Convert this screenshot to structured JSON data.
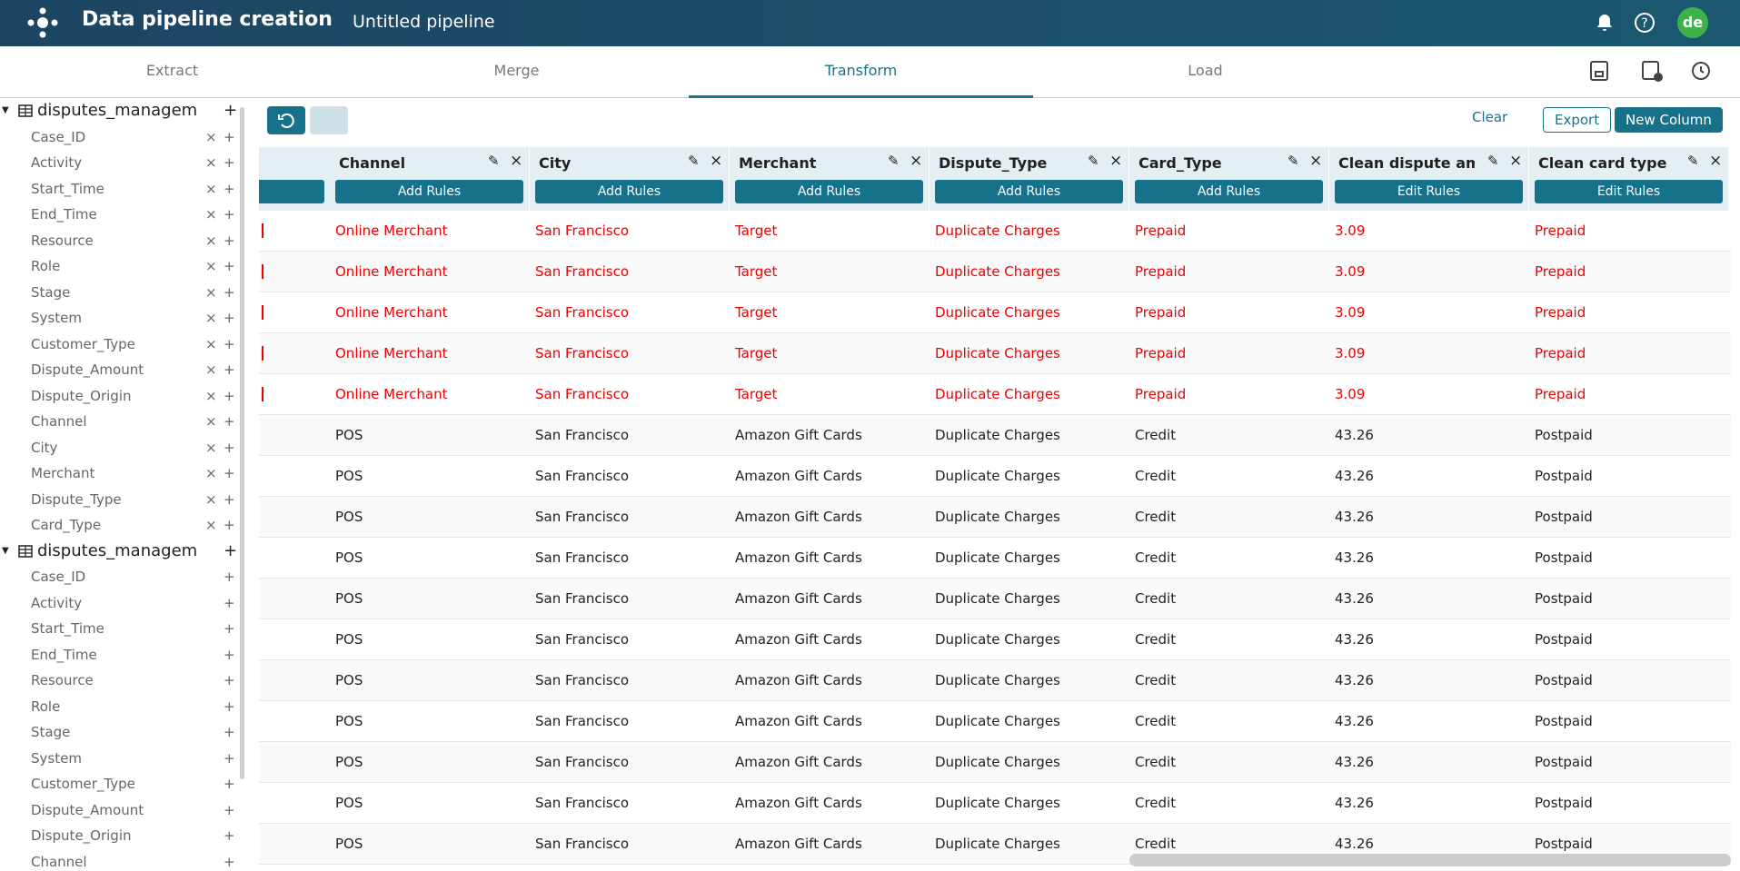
{
  "header": {
    "title": "Data pipeline creation",
    "pipeline": "Untitled pipeline",
    "avatar": "de"
  },
  "tabs": {
    "items": [
      "Extract",
      "Merge",
      "Transform",
      "Load"
    ],
    "active": 2
  },
  "toolbar": {
    "clear": "Clear",
    "export": "Export",
    "new_column": "New Column"
  },
  "sidebar": {
    "tables": [
      {
        "name": "disputes_managem",
        "removable": true,
        "fields": [
          "Case_ID",
          "Activity",
          "Start_Time",
          "End_Time",
          "Resource",
          "Role",
          "Stage",
          "System",
          "Customer_Type",
          "Dispute_Amount",
          "Dispute_Origin",
          "Channel",
          "City",
          "Merchant",
          "Dispute_Type",
          "Card_Type"
        ]
      },
      {
        "name": "disputes_managem",
        "removable": false,
        "fields": [
          "Case_ID",
          "Activity",
          "Start_Time",
          "End_Time",
          "Resource",
          "Role",
          "Stage",
          "System",
          "Customer_Type",
          "Dispute_Amount",
          "Dispute_Origin",
          "Channel"
        ]
      }
    ]
  },
  "table": {
    "columns": [
      {
        "name": "Channel",
        "action": "Add Rules"
      },
      {
        "name": "City",
        "action": "Add Rules"
      },
      {
        "name": "Merchant",
        "action": "Add Rules"
      },
      {
        "name": "Dispute_Type",
        "action": "Add Rules"
      },
      {
        "name": "Card_Type",
        "action": "Add Rules"
      },
      {
        "name": "Clean dispute am…",
        "action": "Edit Rules"
      },
      {
        "name": "Clean card type",
        "action": "Edit Rules"
      }
    ],
    "rows": [
      {
        "highlight": true,
        "cells": [
          "Online Merchant",
          "San Francisco",
          "Target",
          "Duplicate Charges",
          "Prepaid",
          3.09,
          "Prepaid"
        ]
      },
      {
        "highlight": true,
        "cells": [
          "Online Merchant",
          "San Francisco",
          "Target",
          "Duplicate Charges",
          "Prepaid",
          3.09,
          "Prepaid"
        ]
      },
      {
        "highlight": true,
        "cells": [
          "Online Merchant",
          "San Francisco",
          "Target",
          "Duplicate Charges",
          "Prepaid",
          3.09,
          "Prepaid"
        ]
      },
      {
        "highlight": true,
        "cells": [
          "Online Merchant",
          "San Francisco",
          "Target",
          "Duplicate Charges",
          "Prepaid",
          3.09,
          "Prepaid"
        ]
      },
      {
        "highlight": true,
        "cells": [
          "Online Merchant",
          "San Francisco",
          "Target",
          "Duplicate Charges",
          "Prepaid",
          3.09,
          "Prepaid"
        ]
      },
      {
        "highlight": false,
        "cells": [
          "POS",
          "San Francisco",
          "Amazon Gift Cards",
          "Duplicate Charges",
          "Credit",
          43.26,
          "Postpaid"
        ]
      },
      {
        "highlight": false,
        "cells": [
          "POS",
          "San Francisco",
          "Amazon Gift Cards",
          "Duplicate Charges",
          "Credit",
          43.26,
          "Postpaid"
        ]
      },
      {
        "highlight": false,
        "cells": [
          "POS",
          "San Francisco",
          "Amazon Gift Cards",
          "Duplicate Charges",
          "Credit",
          43.26,
          "Postpaid"
        ]
      },
      {
        "highlight": false,
        "cells": [
          "POS",
          "San Francisco",
          "Amazon Gift Cards",
          "Duplicate Charges",
          "Credit",
          43.26,
          "Postpaid"
        ]
      },
      {
        "highlight": false,
        "cells": [
          "POS",
          "San Francisco",
          "Amazon Gift Cards",
          "Duplicate Charges",
          "Credit",
          43.26,
          "Postpaid"
        ]
      },
      {
        "highlight": false,
        "cells": [
          "POS",
          "San Francisco",
          "Amazon Gift Cards",
          "Duplicate Charges",
          "Credit",
          43.26,
          "Postpaid"
        ]
      },
      {
        "highlight": false,
        "cells": [
          "POS",
          "San Francisco",
          "Amazon Gift Cards",
          "Duplicate Charges",
          "Credit",
          43.26,
          "Postpaid"
        ]
      },
      {
        "highlight": false,
        "cells": [
          "POS",
          "San Francisco",
          "Amazon Gift Cards",
          "Duplicate Charges",
          "Credit",
          43.26,
          "Postpaid"
        ]
      },
      {
        "highlight": false,
        "cells": [
          "POS",
          "San Francisco",
          "Amazon Gift Cards",
          "Duplicate Charges",
          "Credit",
          43.26,
          "Postpaid"
        ]
      },
      {
        "highlight": false,
        "cells": [
          "POS",
          "San Francisco",
          "Amazon Gift Cards",
          "Duplicate Charges",
          "Credit",
          43.26,
          "Postpaid"
        ]
      },
      {
        "highlight": false,
        "cells": [
          "POS",
          "San Francisco",
          "Amazon Gift Cards",
          "Duplicate Charges",
          "Credit",
          43.26,
          "Postpaid"
        ]
      }
    ]
  }
}
